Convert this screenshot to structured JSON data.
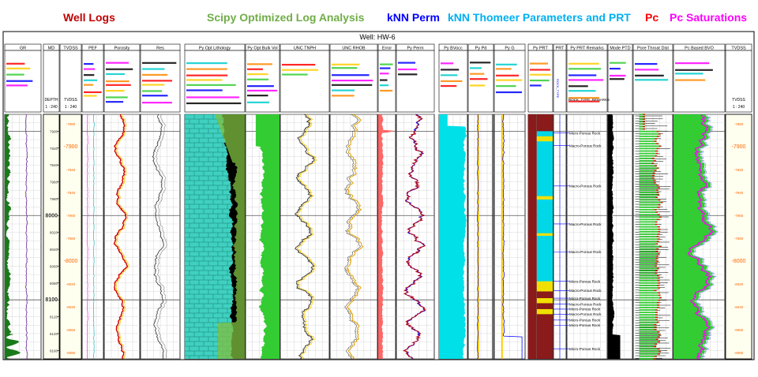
{
  "headers": [
    {
      "text": "Well Logs",
      "color": "#c00000"
    },
    {
      "text": "Scipy Optimized Log Analysis",
      "color": "#70ad47"
    },
    {
      "text": "kNN Perm",
      "color": "#0000ff"
    },
    {
      "text": "kNN Thomeer Parameters and PRT",
      "color": "#00b0f0"
    },
    {
      "text": "Pc",
      "color": "#ff0000"
    },
    {
      "text": "Pc Saturations",
      "color": "#ff00ff"
    }
  ],
  "chart_data": {
    "type": "well-log",
    "title": "Well: HW-6",
    "depth_md": {
      "min": 7880,
      "max": 8170,
      "ticks": [
        7900,
        7920,
        7940,
        7960,
        7980,
        8000,
        8020,
        8040,
        8060,
        8080,
        8100,
        8120,
        8140,
        8160
      ],
      "major": [
        8000,
        8100
      ]
    },
    "depth_tvdss": {
      "ticks": [
        -7880,
        -7900,
        -7920,
        -7940,
        -7960,
        -7980,
        -8000,
        -8020,
        -8040,
        -8060,
        -8080
      ],
      "major": [
        -7900,
        -8000
      ]
    },
    "tracks": [
      "GR",
      "MD",
      "TVDSS",
      "PEF",
      "Porosity",
      "Res",
      "Py Opt Lithology",
      "Py Opt Bulk Vol",
      "UNC TNPH",
      "UNC RHOB",
      "Error",
      "Py Perm",
      "Py BVocc",
      "Py Pd",
      "Py G",
      "Py PRT",
      "PRT",
      "Py PRT Remarks",
      "Mode PTD",
      "Pore Throat Dist",
      "Pc Based BVO",
      "TVDSS"
    ],
    "md_header_labels": [
      "DEPTH",
      "1 : 240"
    ],
    "tvdss_header_labels": [
      "TVDSS",
      "1 : 240"
    ],
    "prt_header_label": "ROCK_TYPE_REMARKS",
    "remarks": [
      {
        "md": 7902,
        "text": "Micro-Porous Rock"
      },
      {
        "md": 7917,
        "text": "Macro-Porous Rock"
      },
      {
        "md": 7965,
        "text": "Macro-Porous Rock"
      },
      {
        "md": 8010,
        "text": "Macro-Porous Rock"
      },
      {
        "md": 8043,
        "text": "Macro-Porous Rock"
      },
      {
        "md": 8078,
        "text": "Micro-Porous Rock"
      },
      {
        "md": 8089,
        "text": "Macro-Porous Rock"
      },
      {
        "md": 8098,
        "text": "Micro-Porous Rock"
      },
      {
        "md": 8105,
        "text": "Macro-Porous Rock"
      },
      {
        "md": 8111,
        "text": "Micro-Porous Rock"
      },
      {
        "md": 8117,
        "text": "Macro-Porous Rock"
      },
      {
        "md": 8124,
        "text": "Micro-Porous Rock"
      },
      {
        "md": 8130,
        "text": "Micro-Porous Rock"
      },
      {
        "md": 8158,
        "text": "Micro-Porous Rock"
      }
    ],
    "colors": {
      "gr": "#1a7a1a",
      "gr_line": "#7030a0",
      "md_bg": "#fffff0",
      "porosity": "#d40000",
      "resistivity": "#333333",
      "lithology_calcite": "#40d0c0",
      "lithology_dolomite": "#80c040",
      "lithology_oil": "#000000",
      "bulk_vol": "#33cc33",
      "tnph": "#404040",
      "rhob": "#e0a000",
      "error": "#ff0000",
      "perm_knn": "#0000ff",
      "perm_py": "#c00000",
      "bvocc": "#00e0e8",
      "pd": "#0000ff",
      "g": "#0000ff",
      "prt_body": "#00d8e8",
      "prt_tight": "#f0e000",
      "prt_low": "#8b1a1a",
      "ptd": "#33cc33",
      "ptd_macro": "#ff0000",
      "bvo": "#ff00ff",
      "bvo_fill": "#33cc33"
    }
  }
}
